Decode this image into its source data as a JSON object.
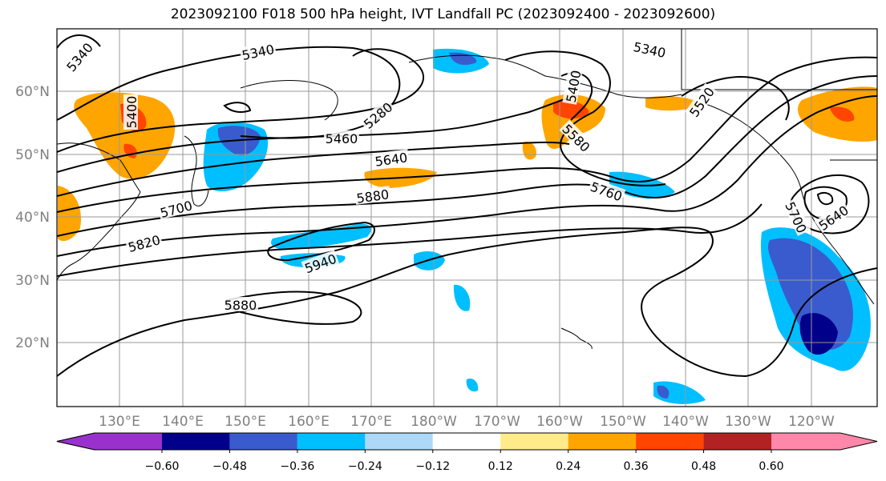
{
  "title": "2023092100 F018 500 hPa height, IVT Landfall PC (2023092400 - 2023092600)",
  "map": {
    "lat_labels": [
      "60°N",
      "50°N",
      "40°N",
      "30°N",
      "20°N"
    ],
    "lon_labels": [
      "130°E",
      "140°E",
      "150°E",
      "160°E",
      "170°E",
      "180°W",
      "170°W",
      "160°W",
      "150°W",
      "140°W",
      "130°W",
      "120°W"
    ],
    "contour_labels": [
      "5340",
      "5340",
      "5340",
      "5400",
      "5280",
      "5460",
      "5640",
      "5880",
      "5700",
      "5820",
      "5940",
      "5880",
      "5400",
      "5580",
      "5520",
      "5760",
      "5700",
      "5640"
    ],
    "colors": {
      "land_line": "#000000",
      "grid": "#999999",
      "contour": "#000000"
    }
  },
  "colorbar": {
    "tick_labels": [
      "−0.60",
      "−0.48",
      "−0.36",
      "−0.24",
      "−0.12",
      "0.12",
      "0.24",
      "0.36",
      "0.48",
      "0.60"
    ],
    "colors": [
      "#9932cc",
      "#00008b",
      "#3a5bcd",
      "#00bfff",
      "#add8f8",
      "#ffffff",
      "#ffeb8a",
      "#ffa500",
      "#ff4500",
      "#b22222",
      "#ff88aa"
    ]
  }
}
